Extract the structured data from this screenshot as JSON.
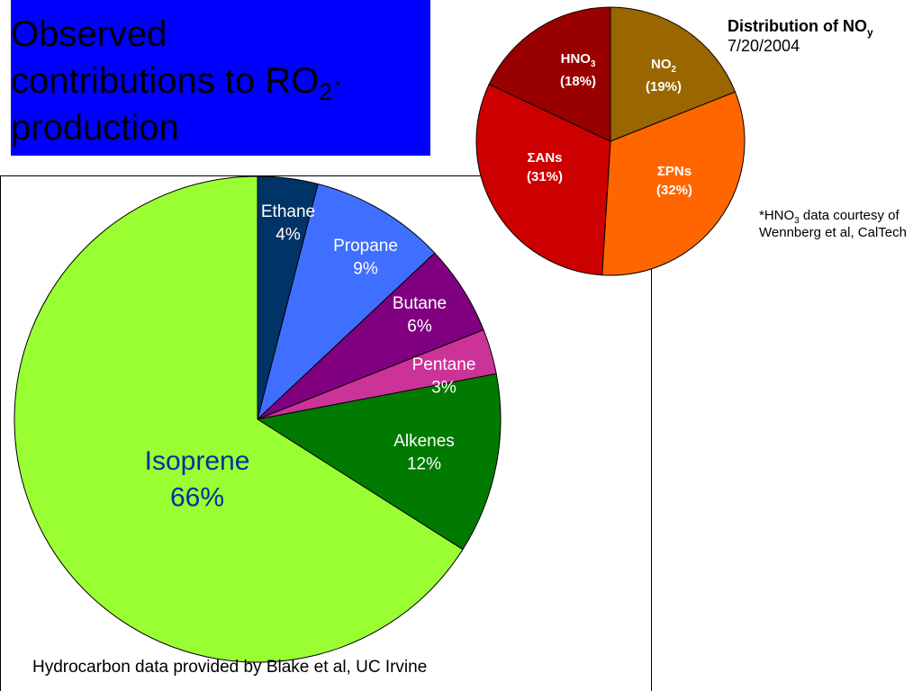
{
  "slide_title": {
    "line1": "Observed",
    "line2_pre": "contributions to RO",
    "line2_sub": "2",
    "line2_post": "·",
    "line3": "production"
  },
  "noy_header": {
    "title": "Distribution of NO",
    "title_sub": "y",
    "date": "7/20/2004"
  },
  "noy_note": {
    "pre": "*HNO",
    "sub": "3",
    "post": " data courtesy of Wennberg et al, CalTech"
  },
  "credit": "Hydrocarbon data provided by Blake et al, UC Irvine",
  "chart_data": [
    {
      "type": "pie",
      "title": "",
      "categories": [
        "Ethane",
        "Propane",
        "Butane",
        "Pentane",
        "Alkenes",
        "Isoprene"
      ],
      "values": [
        4,
        9,
        6,
        3,
        12,
        66
      ],
      "labels": [
        "4%",
        "9%",
        "6%",
        "3%",
        "12%",
        "66%"
      ],
      "colors": [
        "#003366",
        "#3f6fff",
        "#800080",
        "#cc3399",
        "#007a00",
        "#99ff33"
      ]
    },
    {
      "type": "pie",
      "title": "Distribution of NOy 7/20/2004",
      "categories": [
        "NO2",
        "ΣPNs",
        "ΣANs",
        "HNO3"
      ],
      "values": [
        19,
        32,
        31,
        18
      ],
      "labels": [
        "(19%)",
        "(32%)",
        "(31%)",
        "(18%)"
      ],
      "colors": [
        "#996600",
        "#ff6600",
        "#cc0000",
        "#990000"
      ]
    }
  ]
}
